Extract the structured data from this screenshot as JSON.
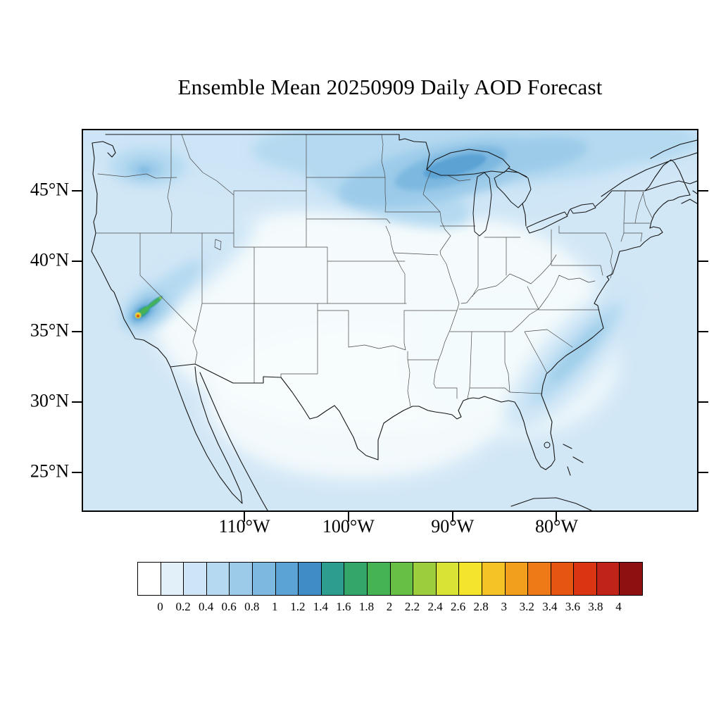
{
  "title": "Ensemble Mean 20250909 Daily AOD Forecast",
  "axes": {
    "lat_ticks": [
      {
        "label": "45°N",
        "value": 45
      },
      {
        "label": "40°N",
        "value": 40
      },
      {
        "label": "35°N",
        "value": 35
      },
      {
        "label": "30°N",
        "value": 30
      },
      {
        "label": "25°N",
        "value": 25
      }
    ],
    "lon_ticks": [
      {
        "label": "110°W",
        "value": 110
      },
      {
        "label": "100°W",
        "value": 100
      },
      {
        "label": "90°W",
        "value": 90
      },
      {
        "label": "80°W",
        "value": 80
      }
    ]
  },
  "colorbar": {
    "labels": [
      "0",
      "0.2",
      "0.4",
      "0.6",
      "0.8",
      "1",
      "1.2",
      "1.4",
      "1.6",
      "1.8",
      "2",
      "2.2",
      "2.4",
      "2.6",
      "2.8",
      "3",
      "3.2",
      "3.4",
      "3.6",
      "3.8",
      "4"
    ],
    "colors": [
      "#ffffff",
      "#e2f0fa",
      "#cde5f6",
      "#b4d9f0",
      "#9ccbe9",
      "#7db8e0",
      "#5ba3d4",
      "#3f8cc6",
      "#2d9d8f",
      "#35a66a",
      "#45b354",
      "#67bf45",
      "#9ccd3c",
      "#d8e335",
      "#f4e42b",
      "#f5c325",
      "#f39f1e",
      "#ee7a17",
      "#e65512",
      "#d93512",
      "#c02318",
      "#8e1010"
    ]
  },
  "chart_data": {
    "type": "heatmap",
    "subtype": "filled-contour-geographic-map",
    "title": "Ensemble Mean 20250909 Daily AOD Forecast",
    "variable": "Aerosol Optical Depth (AOD), daily ensemble mean",
    "date_shown_in_title": "20250909",
    "region": "Continental United States with southern Canada and northern Mexico",
    "x_axis": {
      "label_type": "longitude",
      "tick_labels": [
        "110°W",
        "100°W",
        "90°W",
        "80°W"
      ]
    },
    "y_axis": {
      "label_type": "latitude",
      "tick_labels": [
        "45°N",
        "40°N",
        "35°N",
        "30°N",
        "25°N"
      ]
    },
    "approx_domain": {
      "lon_west": "125.5°W",
      "lon_east": "66.5°W",
      "lat_south": "22.3°N",
      "lat_north": "49.3°N"
    },
    "colorbar": {
      "orientation": "horizontal",
      "levels": [
        0,
        0.2,
        0.4,
        0.6,
        0.8,
        1,
        1.2,
        1.4,
        1.6,
        1.8,
        2,
        2.2,
        2.4,
        2.6,
        2.8,
        3,
        3.2,
        3.4,
        3.6,
        3.8,
        4
      ],
      "colors_low_to_high": [
        "#ffffff",
        "#e2f0fa",
        "#cde5f6",
        "#b4d9f0",
        "#9ccbe9",
        "#7db8e0",
        "#5ba3d4",
        "#3f8cc6",
        "#2d9d8f",
        "#35a66a",
        "#45b354",
        "#67bf45",
        "#9ccd3c",
        "#d8e335",
        "#f4e42b",
        "#f5c325",
        "#f39f1e",
        "#ee7a17",
        "#e65512",
        "#d93512",
        "#c02318",
        "#8e1010"
      ]
    },
    "features": [
      {
        "region": "Central California (San Joaquin Valley) smoke hotspot",
        "approx_center": {
          "lat": 36.3,
          "lon": -119.7
        },
        "peak_aod": 4.0,
        "note": "Concentric maxima: tiny dark-red/red core >3.4, orange ~3, yellow ~2.4, green/teal ring 1.4-2, blue halo 0.4-1.2, with a short green plume extending northeast into Nevada"
      },
      {
        "region": "Pacific Northwest (eastern Washington)",
        "approx_center": {
          "lat": 46.5,
          "lon": -119.5
        },
        "aod_range": [
          0.4,
          0.8
        ]
      },
      {
        "region": "Northern tier band along Canada border: Montana, Dakotas, Great Lakes, Quebec, New England",
        "aod_range": [
          0.2,
          0.6
        ]
      },
      {
        "region": "Upper Midwest / western Lake Superior maximum",
        "approx_center": {
          "lat": 47.5,
          "lon": -91
        },
        "aod_range": [
          0.6,
          1.0
        ]
      },
      {
        "region": "Southeast U.S. Atlantic coastal plume, Georgia to Carolinas offshore",
        "aod_range": [
          0.2,
          0.6
        ]
      },
      {
        "region": "CONUS background and surrounding oceans",
        "aod_range": [
          0.0,
          0.2
        ]
      }
    ],
    "legend_position": "bottom",
    "grid": false
  }
}
